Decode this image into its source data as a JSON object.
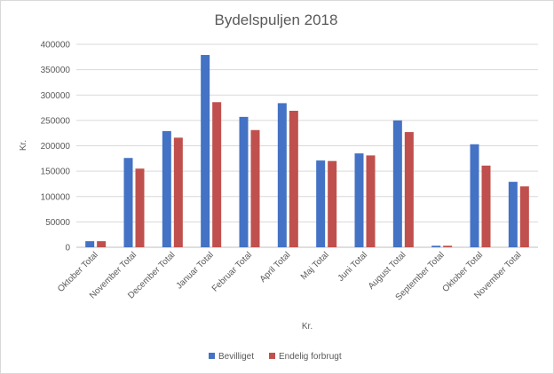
{
  "chart_data": {
    "type": "bar",
    "title": "Bydelspuljen 2018",
    "xlabel": "Kr.",
    "ylabel": "Kr.",
    "ylim": [
      0,
      400000
    ],
    "yticks": [
      0,
      50000,
      100000,
      150000,
      200000,
      250000,
      300000,
      350000,
      400000
    ],
    "ytick_labels": [
      "0",
      "50000",
      "100000",
      "150000",
      "200000",
      "250000",
      "300000",
      "350000",
      "400000"
    ],
    "grid": true,
    "legend_position": "bottom",
    "categories": [
      "Oktober Total",
      "November Total",
      "December Total",
      "Januar Total",
      "Februar Total",
      "April Total",
      "Maj Total",
      "Juni Total",
      "August Total",
      "September Total",
      "Oktober Total",
      "November Total"
    ],
    "series": [
      {
        "name": "Bevilliget",
        "color": "#4472c4",
        "values": [
          12000,
          176000,
          229000,
          379000,
          257000,
          284000,
          171000,
          185000,
          250000,
          3000,
          203000,
          129000
        ]
      },
      {
        "name": "Endelig forbrugt",
        "color": "#c0504d",
        "values": [
          12000,
          155000,
          216000,
          286000,
          231000,
          269000,
          170000,
          181000,
          227000,
          3000,
          161000,
          120000
        ]
      }
    ]
  }
}
